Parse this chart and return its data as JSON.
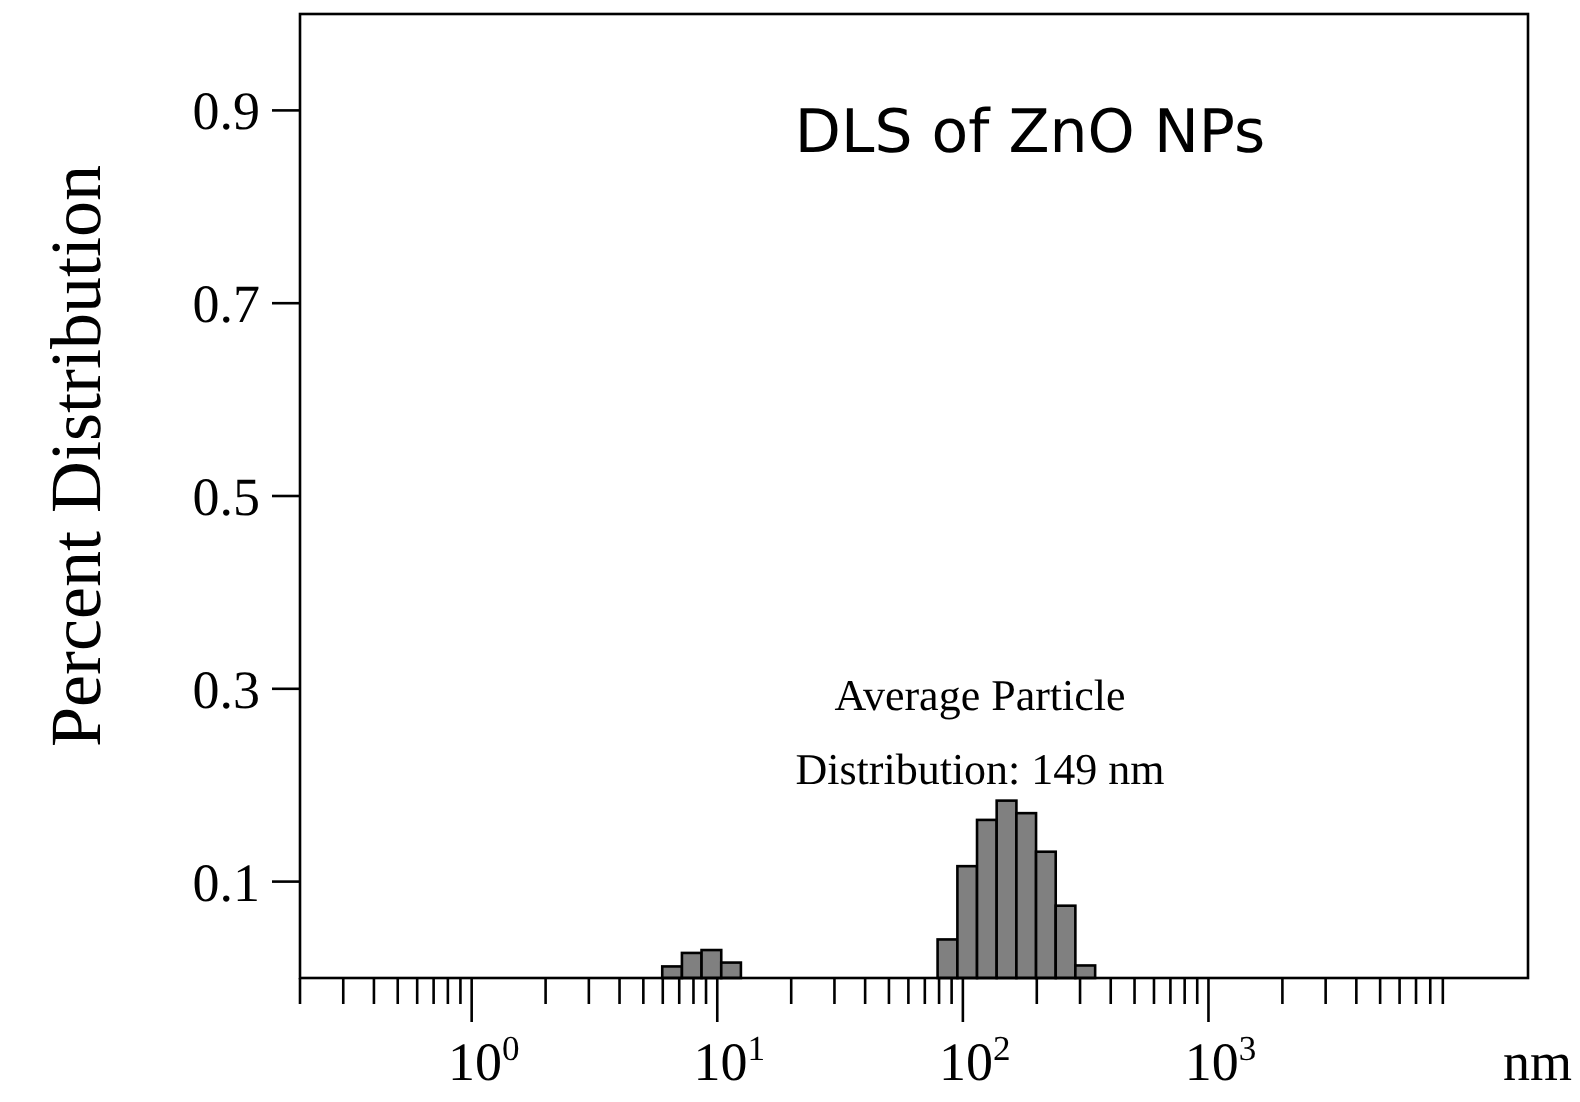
{
  "chart_data": {
    "type": "histogram",
    "title": "DLS of ZnO NPs",
    "xlabel": "nm",
    "ylabel": "Percent Distribution",
    "annotations": [
      "Average Particle\nDistribution: 149 nm"
    ],
    "bins": [
      5.97,
      7.18,
      8.63,
      10.38,
      12.48,
      15.0,
      18.1,
      21.7,
      26.1,
      31.4,
      37.8,
      45.4,
      54.6,
      65.6,
      78.9,
      95.0,
      114.2,
      137.3,
      165.2,
      198.6,
      238.8,
      287.1,
      345.6
    ],
    "values": [
      0.012,
      0.026,
      0.029,
      0.016,
      0,
      0,
      0,
      0,
      0,
      0,
      0,
      0,
      0,
      0,
      0.04,
      0.116,
      0.164,
      0.184,
      0.171,
      0.131,
      0.075,
      0.013
    ],
    "color": "#808080",
    "log": "x",
    "xlim": [
      0.2,
      20000
    ],
    "xticks": [
      {
        "value": 0.2,
        "label": null
      },
      {
        "value": 0.3,
        "label": null
      },
      {
        "value": 0.4,
        "label": null
      },
      {
        "value": 0.5,
        "label": null
      },
      {
        "value": 0.6,
        "label": null
      },
      {
        "value": 0.7,
        "label": null
      },
      {
        "value": 0.8,
        "label": null
      },
      {
        "value": 0.9,
        "label": null
      },
      {
        "value": 1,
        "label": "10$^{0}$"
      },
      {
        "value": 2,
        "label": null
      },
      {
        "value": 3,
        "label": null
      },
      {
        "value": 4,
        "label": null
      },
      {
        "value": 5,
        "label": null
      },
      {
        "value": 6,
        "label": null
      },
      {
        "value": 7,
        "label": null
      },
      {
        "value": 8,
        "label": null
      },
      {
        "value": 9,
        "label": null
      },
      {
        "value": 10,
        "label": "10$^{1}$"
      },
      {
        "value": 20,
        "label": null
      },
      {
        "value": 30,
        "label": null
      },
      {
        "value": 40,
        "label": null
      },
      {
        "value": 50,
        "label": null
      },
      {
        "value": 60,
        "label": null
      },
      {
        "value": 70,
        "label": null
      },
      {
        "value": 80,
        "label": null
      },
      {
        "value": 90,
        "label": null
      },
      {
        "value": 100,
        "label": "10$^{2}$"
      },
      {
        "value": 200,
        "label": null
      },
      {
        "value": 300,
        "label": null
      },
      {
        "value": 400,
        "label": null
      },
      {
        "value": 500,
        "label": null
      },
      {
        "value": 600,
        "label": null
      },
      {
        "value": 700,
        "label": null
      },
      {
        "value": 800,
        "label": null
      },
      {
        "value": 900,
        "label": null
      },
      {
        "value": 1000,
        "label": "10$^{3}$"
      },
      {
        "value": 2000,
        "label": null
      },
      {
        "value": 3000,
        "label": null
      },
      {
        "value": 4000,
        "label": null
      },
      {
        "value": 5000,
        "label": null
      },
      {
        "value": 6000,
        "label": null
      },
      {
        "value": 7000,
        "label": null
      },
      {
        "value": 8000,
        "label": null
      },
      {
        "value": 9000,
        "label": null
      }
    ],
    "ylim": [
      0,
      1
    ],
    "yticks": [
      0.1,
      0.3,
      0.5,
      0.7,
      0.9
    ],
    "grid": false
  }
}
